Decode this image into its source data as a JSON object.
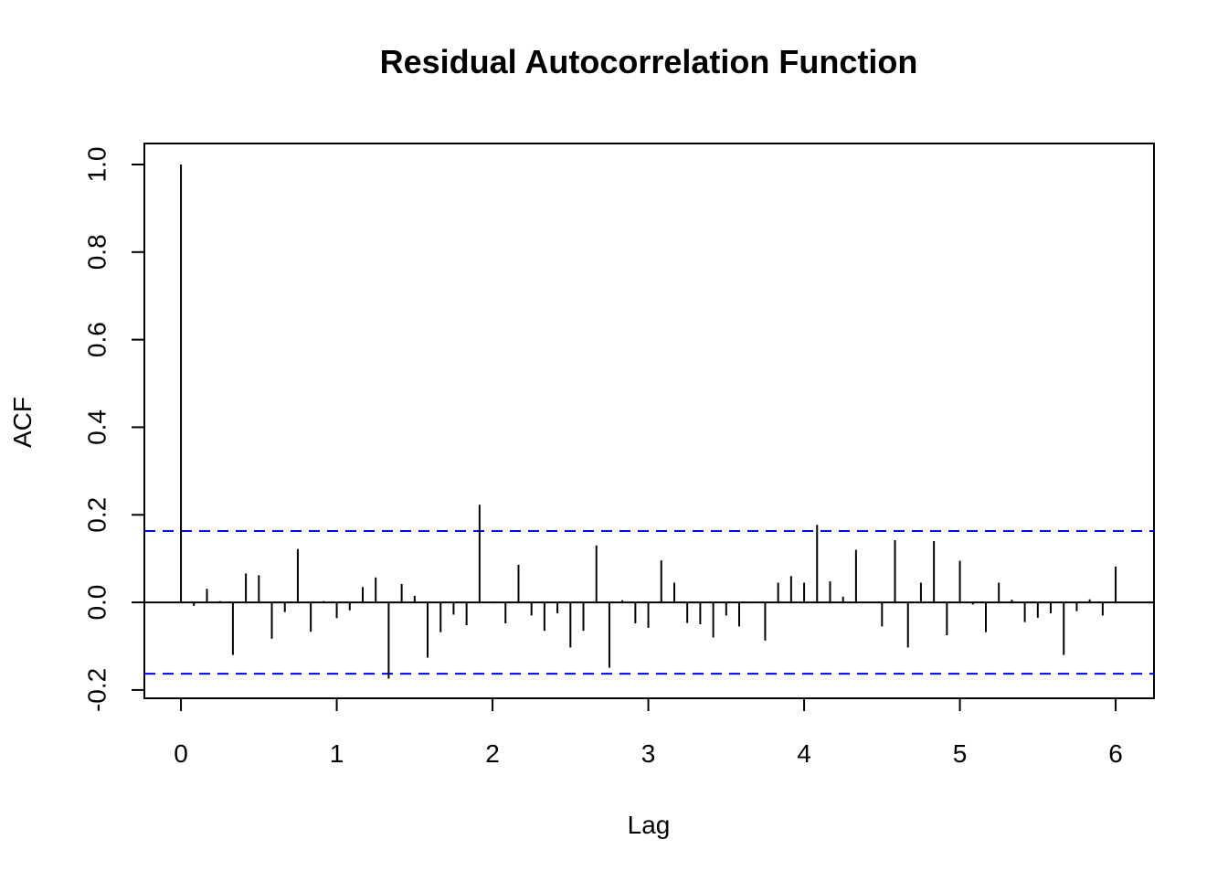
{
  "chart_data": {
    "type": "acf",
    "title": "Residual Autocorrelation Function",
    "x_label": "Lag",
    "y_label": "ACF",
    "x": [
      0,
      0.0833,
      0.1667,
      0.25,
      0.3333,
      0.4167,
      0.5,
      0.5833,
      0.6667,
      0.75,
      0.8333,
      0.9167,
      1,
      1.0833,
      1.1667,
      1.25,
      1.3333,
      1.4167,
      1.5,
      1.5833,
      1.6667,
      1.75,
      1.8333,
      1.9167,
      2,
      2.0833,
      2.1667,
      2.25,
      2.3333,
      2.4167,
      2.5,
      2.5833,
      2.6667,
      2.75,
      2.8333,
      2.9167,
      3,
      3.0833,
      3.1667,
      3.25,
      3.3333,
      3.4167,
      3.5,
      3.5833,
      3.6667,
      3.75,
      3.8333,
      3.9167,
      4,
      4.0833,
      4.1667,
      4.25,
      4.3333,
      4.4167,
      4.5,
      4.5833,
      4.6667,
      4.75,
      4.8333,
      4.9167,
      5,
      5.0833,
      5.1667,
      5.25,
      5.3333,
      5.4167,
      5.5,
      5.5833,
      5.6667,
      5.75,
      5.8333,
      5.9167,
      6
    ],
    "values": [
      1,
      -0.008,
      0.031,
      0.003,
      -0.12,
      0.066,
      0.062,
      -0.083,
      -0.022,
      0.122,
      -0.067,
      0.003,
      -0.036,
      -0.018,
      0.035,
      0.057,
      -0.174,
      0.042,
      0.015,
      -0.126,
      -0.068,
      -0.028,
      -0.052,
      0.223,
      0.002,
      -0.048,
      0.086,
      -0.03,
      -0.065,
      -0.025,
      -0.103,
      -0.065,
      0.13,
      -0.149,
      0.005,
      -0.048,
      -0.058,
      0.096,
      0.045,
      -0.047,
      -0.05,
      -0.08,
      -0.03,
      -0.055,
      -0.002,
      -0.087,
      0.045,
      0.06,
      0.045,
      0.177,
      0.048,
      0.013,
      0.12,
      0.001,
      -0.055,
      0.142,
      -0.103,
      0.045,
      0.14,
      -0.075,
      0.095,
      -0.005,
      -0.068,
      0.045,
      0.006,
      -0.045,
      -0.035,
      -0.025,
      -0.12,
      -0.02,
      0.007,
      -0.03,
      0.082
    ],
    "color": "#000000",
    "hline": 0,
    "confidence_bounds": [
      -0.163,
      0.163
    ],
    "bound_color": "#0000ff",
    "xlim": [
      -0.235,
      6.246
    ],
    "ylim": [
      -0.219,
      1.048
    ],
    "xticks": [
      0,
      1,
      2,
      3,
      4,
      5,
      6
    ],
    "yticks": [
      -0.2,
      {
        "value": 0,
        "label": "0.0"
      },
      0.2,
      0.4,
      0.6,
      0.8,
      {
        "value": 1,
        "label": "1.0"
      }
    ]
  }
}
